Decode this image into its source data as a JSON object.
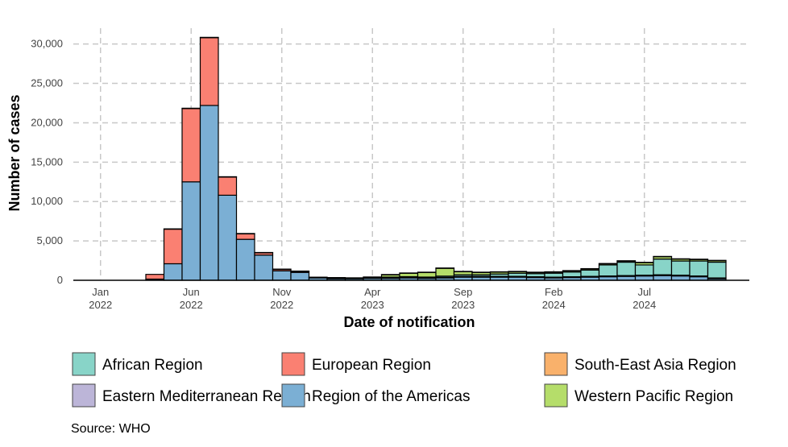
{
  "chart_data": {
    "type": "bar",
    "stacked": true,
    "xlabel": "Date of notification",
    "ylabel": "Number of cases",
    "ylim": [
      0,
      31500
    ],
    "yticks": [
      0,
      5000,
      10000,
      15000,
      20000,
      25000,
      30000
    ],
    "ytick_labels": [
      "0",
      "5,000",
      "10,000",
      "15,000",
      "20,000",
      "25,000",
      "30,000"
    ],
    "xticks": [
      {
        "line1": "Jan",
        "line2": "2022",
        "month": 0
      },
      {
        "line1": "Jun",
        "line2": "2022",
        "month": 5
      },
      {
        "line1": "Nov",
        "line2": "2022",
        "month": 10
      },
      {
        "line1": "Apr",
        "line2": "2023",
        "month": 15
      },
      {
        "line1": "Sep",
        "line2": "2023",
        "month": 20
      },
      {
        "line1": "Feb",
        "line2": "2024",
        "month": 25
      },
      {
        "line1": "Jul",
        "line2": "2024",
        "month": 30
      }
    ],
    "grid": true,
    "legend_position": "bottom",
    "categories": [
      "Jan 2022",
      "Feb 2022",
      "Mar 2022",
      "Apr 2022",
      "May 2022",
      "Jun 2022",
      "Jul 2022",
      "Aug 2022",
      "Sep 2022",
      "Oct 2022",
      "Nov 2022",
      "Dec 2022",
      "Jan 2023",
      "Feb 2023",
      "Mar 2023",
      "Apr 2023",
      "May 2023",
      "Jun 2023",
      "Jul 2023",
      "Aug 2023",
      "Sep 2023",
      "Oct 2023",
      "Nov 2023",
      "Dec 2023",
      "Jan 2024",
      "Feb 2024",
      "Mar 2024",
      "Apr 2024",
      "May 2024",
      "Jun 2024",
      "Jul 2024",
      "Aug 2024",
      "Sep 2024",
      "Oct 2024",
      "Nov 2024",
      "Dec 2024"
    ],
    "series": [
      {
        "name": "Region of the Americas",
        "color": "#7BAFD4",
        "values": [
          0,
          0,
          0,
          0,
          150,
          2100,
          12500,
          22200,
          10800,
          5200,
          3200,
          1200,
          1000,
          300,
          200,
          200,
          250,
          250,
          300,
          250,
          300,
          400,
          400,
          400,
          400,
          350,
          300,
          350,
          400,
          450,
          500,
          550,
          600,
          550,
          450,
          200
        ]
      },
      {
        "name": "European Region",
        "color": "#FA8072",
        "values": [
          0,
          0,
          0,
          0,
          600,
          4400,
          9300,
          8600,
          2300,
          700,
          300,
          200,
          150,
          80,
          80,
          50,
          50,
          60,
          60,
          60,
          80,
          100,
          100,
          100,
          100,
          100,
          100,
          100,
          100,
          100,
          100,
          100,
          100,
          100,
          100,
          100
        ]
      },
      {
        "name": "African Region",
        "color": "#88D4C8",
        "values": [
          0,
          0,
          0,
          0,
          0,
          0,
          0,
          0,
          0,
          0,
          0,
          0,
          0,
          0,
          0,
          0,
          0,
          100,
          100,
          100,
          150,
          200,
          200,
          300,
          400,
          400,
          500,
          600,
          800,
          1400,
          1700,
          1300,
          2000,
          1800,
          1900,
          2000
        ]
      },
      {
        "name": "Western Pacific Region",
        "color": "#B5DD6A",
        "values": [
          0,
          0,
          0,
          0,
          0,
          0,
          0,
          0,
          0,
          0,
          0,
          0,
          0,
          0,
          50,
          50,
          100,
          300,
          450,
          600,
          1000,
          400,
          300,
          250,
          200,
          150,
          150,
          150,
          150,
          150,
          150,
          300,
          300,
          250,
          200,
          200
        ]
      },
      {
        "name": "Eastern Mediterranean Region",
        "color": "#BCB5D8",
        "values": [
          0,
          0,
          0,
          0,
          0,
          0,
          0,
          0,
          0,
          0,
          0,
          0,
          0,
          0,
          0,
          0,
          0,
          0,
          0,
          0,
          0,
          0,
          0,
          0,
          0,
          0,
          0,
          0,
          0,
          0,
          0,
          0,
          0,
          0,
          0,
          0
        ]
      },
      {
        "name": "South-East Asia Region",
        "color": "#F9B16B",
        "values": [
          0,
          0,
          0,
          0,
          0,
          30,
          50,
          50,
          50,
          40,
          30,
          20,
          20,
          10,
          10,
          10,
          20,
          20,
          20,
          20,
          30,
          30,
          30,
          30,
          30,
          30,
          30,
          30,
          30,
          30,
          30,
          30,
          30,
          30,
          30,
          30
        ]
      }
    ],
    "legend": [
      {
        "name": "African Region",
        "color": "#88D4C8"
      },
      {
        "name": "Eastern Mediterranean Region",
        "color": "#BCB5D8"
      },
      {
        "name": "European Region",
        "color": "#FA8072"
      },
      {
        "name": "Region of the Americas",
        "color": "#7BAFD4"
      },
      {
        "name": "South-East Asia Region",
        "color": "#F9B16B"
      },
      {
        "name": "Western Pacific Region",
        "color": "#B5DD6A"
      }
    ]
  },
  "source": "Source: WHO"
}
